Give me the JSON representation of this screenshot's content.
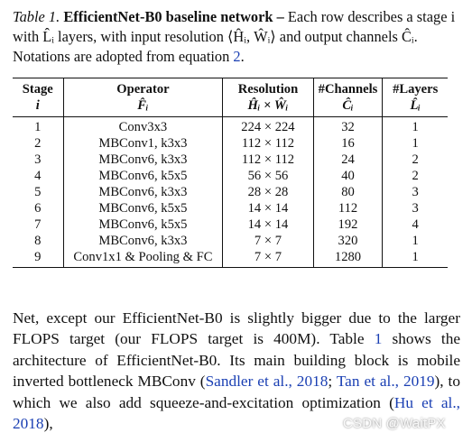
{
  "caption": {
    "label": "Table 1.",
    "title": "EfficientNet-B0 baseline network –",
    "text": " Each row describes a stage i with L̂ᵢ layers, with input resolution ⟨Ĥᵢ, Ŵᵢ⟩ and output channels Ĉᵢ. Notations are adopted from equation ",
    "ref": "2",
    "end": "."
  },
  "table": {
    "headers": [
      "Stage",
      "Operator",
      "Resolution",
      "#Channels",
      "#Layers"
    ],
    "subheaders": [
      "i",
      "F̂ᵢ",
      "Ĥᵢ × Ŵᵢ",
      "Ĉᵢ",
      "L̂ᵢ"
    ],
    "rows": [
      [
        "1",
        "Conv3x3",
        "224 × 224",
        "32",
        "1"
      ],
      [
        "2",
        "MBConv1, k3x3",
        "112 × 112",
        "16",
        "1"
      ],
      [
        "3",
        "MBConv6, k3x3",
        "112 × 112",
        "24",
        "2"
      ],
      [
        "4",
        "MBConv6, k5x5",
        "56 × 56",
        "40",
        "2"
      ],
      [
        "5",
        "MBConv6, k3x3",
        "28 × 28",
        "80",
        "3"
      ],
      [
        "6",
        "MBConv6, k5x5",
        "14 × 14",
        "112",
        "3"
      ],
      [
        "7",
        "MBConv6, k5x5",
        "14 × 14",
        "192",
        "4"
      ],
      [
        "8",
        "MBConv6, k3x3",
        "7 × 7",
        "320",
        "1"
      ],
      [
        "9",
        "Conv1x1 & Pooling & FC",
        "7 × 7",
        "1280",
        "1"
      ]
    ]
  },
  "body": {
    "t1": "Net, except our EfficientNet-B0 is slightly bigger due to the larger FLOPS target (our FLOPS target is 400M). Table ",
    "ref1": "1",
    "t2": " shows the architecture of EfficientNet-B0. Its main building block is mobile inverted bottleneck MBConv (",
    "ref2": "Sandler et al., 2018",
    "t3": "; ",
    "ref3": "Tan et al., 2019",
    "t4": "), to which we also add squeeze-and-excitation optimization (",
    "ref4": "Hu et al., 2018",
    "t5": "),"
  },
  "watermark": "CSDN @WaitPX"
}
